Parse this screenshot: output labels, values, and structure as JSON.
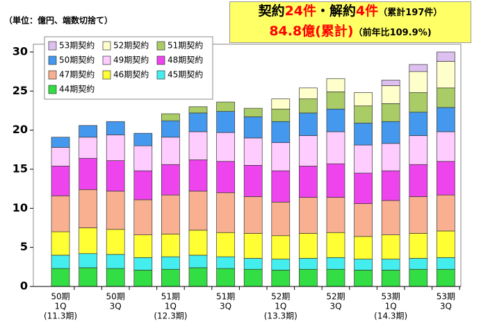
{
  "chart_data": {
    "type": "stacked_bar",
    "unit_note": "（単位：億円、端数切捨て）",
    "headline": [
      [
        {
          "text": "契約",
          "color": "#000000",
          "size": "big"
        },
        {
          "text": "24件",
          "color": "#ff0000",
          "size": "big"
        },
        {
          "text": "・解約",
          "color": "#000000",
          "size": "big"
        },
        {
          "text": "4件",
          "color": "#ff0000",
          "size": "big"
        },
        {
          "text": "（累計197件）",
          "color": "#000000",
          "size": "sm"
        }
      ],
      [
        {
          "text": "84.8億(累計)",
          "color": "#ff0000",
          "size": "big"
        },
        {
          "text": "（前年比109.9%)",
          "color": "#000000",
          "size": "sm"
        }
      ]
    ],
    "categories": [
      [
        "50期",
        "1Q",
        "(11.3期)"
      ],
      null,
      [
        "50期",
        "3Q"
      ],
      null,
      [
        "51期",
        "1Q",
        "(12.3期)"
      ],
      null,
      [
        "51期",
        "3Q"
      ],
      null,
      [
        "52期",
        "1Q",
        "(13.3期)"
      ],
      null,
      [
        "52期",
        "3Q"
      ],
      null,
      [
        "53期",
        "1Q",
        "(14.3期)"
      ],
      null,
      [
        "53期",
        "3Q"
      ]
    ],
    "series": [
      {
        "name": "44期契約",
        "color": "#33dd44",
        "values": [
          2.3,
          2.4,
          2.3,
          2.1,
          2.2,
          2.4,
          2.3,
          2.2,
          2.1,
          2.2,
          2.2,
          2.1,
          2.1,
          2.2,
          2.2
        ]
      },
      {
        "name": "45期契約",
        "color": "#44eeee",
        "values": [
          1.7,
          1.8,
          1.8,
          1.6,
          1.6,
          1.6,
          1.5,
          1.4,
          1.4,
          1.4,
          1.5,
          1.4,
          1.4,
          1.4,
          1.5
        ]
      },
      {
        "name": "46期契約",
        "color": "#ffff33",
        "values": [
          3.0,
          3.3,
          3.2,
          2.9,
          2.9,
          3.2,
          3.1,
          3.2,
          3.0,
          3.2,
          3.2,
          2.9,
          3.1,
          3.2,
          3.4
        ]
      },
      {
        "name": "47期契約",
        "color": "#f8b090",
        "values": [
          4.6,
          4.9,
          4.9,
          4.5,
          5.0,
          5.0,
          5.1,
          4.7,
          4.3,
          4.6,
          4.5,
          4.2,
          4.4,
          4.7,
          4.6
        ]
      },
      {
        "name": "48期契約",
        "color": "#ee44ee",
        "values": [
          3.8,
          4.0,
          3.9,
          3.7,
          3.9,
          4.0,
          4.0,
          4.0,
          4.0,
          4.0,
          4.3,
          3.9,
          3.8,
          4.1,
          4.3
        ]
      },
      {
        "name": "49期契約",
        "color": "#ffccff",
        "values": [
          2.4,
          2.7,
          3.3,
          3.2,
          3.5,
          3.6,
          3.7,
          3.5,
          3.6,
          3.9,
          4.1,
          3.6,
          3.5,
          3.7,
          3.8
        ]
      },
      {
        "name": "50期契約",
        "color": "#4499ee",
        "values": [
          1.3,
          1.5,
          1.7,
          1.6,
          2.1,
          2.4,
          2.7,
          2.7,
          2.7,
          2.9,
          2.9,
          2.8,
          2.8,
          3.0,
          3.1
        ]
      },
      {
        "name": "51期契約",
        "color": "#aacc66",
        "values": [
          null,
          null,
          null,
          null,
          0.9,
          0.8,
          1.2,
          1.1,
          1.6,
          1.8,
          2.2,
          2.2,
          2.3,
          2.5,
          2.5
        ]
      },
      {
        "name": "52期契約",
        "color": "#ffffcc",
        "values": [
          null,
          null,
          null,
          null,
          null,
          null,
          null,
          null,
          1.3,
          1.4,
          1.7,
          1.7,
          2.3,
          2.7,
          3.4
        ]
      },
      {
        "name": "53期契約",
        "color": "#ddc0f0",
        "values": [
          null,
          null,
          null,
          null,
          null,
          null,
          null,
          null,
          null,
          null,
          null,
          null,
          0.7,
          0.9,
          1.2
        ]
      }
    ],
    "ylim": [
      0,
      31
    ],
    "yticks": [
      0,
      5,
      10,
      15,
      20,
      25,
      30
    ],
    "grid": false
  }
}
